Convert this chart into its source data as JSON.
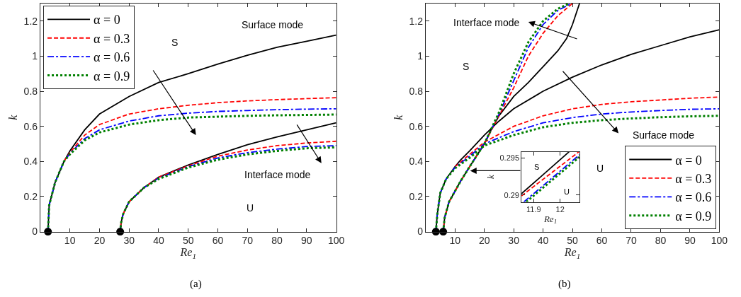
{
  "chart_data": [
    {
      "type": "line",
      "title": "(a)",
      "xlabel": "Re$_{1}$",
      "ylabel": "k",
      "xlim": [
        0,
        100
      ],
      "ylim": [
        0,
        1.3
      ],
      "xticks": [
        10,
        20,
        30,
        40,
        50,
        60,
        70,
        80,
        90,
        100
      ],
      "yticks": [
        0,
        0.2,
        0.4,
        0.6,
        0.8,
        1,
        1.2
      ],
      "legend": "top left",
      "series": [
        {
          "name": "α = 0",
          "color": "#000000",
          "line_style": "solid",
          "x": [
            2.6,
            3,
            5,
            8,
            10,
            15,
            20,
            30,
            40,
            50,
            60,
            70,
            80,
            90,
            100,
            null,
            27,
            27.3,
            28,
            30,
            35,
            40,
            50,
            60,
            70,
            80,
            90,
            100
          ],
          "values": [
            0,
            0.15,
            0.28,
            0.4,
            0.46,
            0.58,
            0.67,
            0.77,
            0.85,
            0.9,
            0.955,
            1.005,
            1.05,
            1.085,
            1.12,
            null,
            0,
            0.05,
            0.1,
            0.17,
            0.25,
            0.31,
            0.38,
            0.44,
            0.495,
            0.54,
            0.58,
            0.62
          ]
        },
        {
          "name": "α = 0.3",
          "color": "#ff0000",
          "line_style": "dashed",
          "x": [
            8,
            10,
            15,
            20,
            30,
            40,
            50,
            60,
            70,
            80,
            90,
            100,
            null,
            27,
            27.3,
            28,
            30,
            35,
            40,
            50,
            60,
            70,
            80,
            90,
            100
          ],
          "values": [
            0.4,
            0.45,
            0.55,
            0.61,
            0.67,
            0.7,
            0.72,
            0.735,
            0.745,
            0.752,
            0.758,
            0.763,
            null,
            0,
            0.05,
            0.1,
            0.17,
            0.25,
            0.31,
            0.375,
            0.43,
            0.465,
            0.49,
            0.505,
            0.515
          ]
        },
        {
          "name": "α = 0.6",
          "color": "#0000ff",
          "line_style": "dashdot",
          "x": [
            2.6,
            3,
            5,
            8,
            10,
            15,
            20,
            30,
            40,
            50,
            60,
            70,
            80,
            90,
            100,
            null,
            27,
            27.3,
            28,
            30,
            35,
            40,
            50,
            60,
            70,
            80,
            90,
            100
          ],
          "values": [
            0,
            0.15,
            0.28,
            0.4,
            0.445,
            0.53,
            0.58,
            0.63,
            0.66,
            0.675,
            0.685,
            0.69,
            0.695,
            0.698,
            0.7,
            null,
            0,
            0.05,
            0.1,
            0.17,
            0.25,
            0.305,
            0.37,
            0.42,
            0.45,
            0.47,
            0.485,
            0.49
          ]
        },
        {
          "name": "α = 0.9",
          "color": "#008000",
          "line_style": "dotted",
          "x": [
            2.6,
            3,
            5,
            8,
            10,
            15,
            20,
            30,
            40,
            50,
            60,
            70,
            80,
            90,
            100,
            null,
            27,
            27.3,
            28,
            30,
            35,
            40,
            50,
            60,
            70,
            80,
            90,
            100
          ],
          "values": [
            0,
            0.15,
            0.28,
            0.4,
            0.44,
            0.52,
            0.565,
            0.61,
            0.635,
            0.65,
            0.655,
            0.66,
            0.663,
            0.665,
            0.667,
            null,
            0,
            0.05,
            0.1,
            0.17,
            0.25,
            0.3,
            0.365,
            0.41,
            0.44,
            0.46,
            0.475,
            0.48
          ]
        },
        {
          "type": "scatter",
          "color": "#000000",
          "marker": "circle",
          "x": [
            2.6,
            27
          ],
          "values": [
            0,
            0
          ]
        }
      ],
      "annotations": [
        "S",
        "Surface mode",
        "Interface mode",
        "U"
      ]
    },
    {
      "type": "line",
      "title": "(b)",
      "xlabel": "Re$_{1}$",
      "ylabel": "k",
      "xlim": [
        0,
        100
      ],
      "ylim": [
        0,
        1.3
      ],
      "xticks": [
        10,
        20,
        30,
        40,
        50,
        60,
        70,
        80,
        90,
        100
      ],
      "yticks": [
        0,
        0.2,
        0.4,
        0.6,
        0.8,
        1,
        1.2
      ],
      "legend": "bottom right",
      "series": [
        {
          "name": "α = 0",
          "color": "#000000",
          "line_style": "solid",
          "x": [
            3.5,
            4,
            5,
            7,
            10,
            12,
            15,
            20,
            25,
            30,
            40,
            50,
            60,
            70,
            80,
            90,
            100,
            null,
            6,
            6.5,
            8,
            10,
            12,
            15,
            20,
            22,
            25,
            30,
            35,
            40,
            45,
            48,
            50,
            52.4
          ],
          "values": [
            0,
            0.1,
            0.22,
            0.3,
            0.37,
            0.41,
            0.46,
            0.55,
            0.63,
            0.7,
            0.8,
            0.88,
            0.95,
            1.01,
            1.06,
            1.11,
            1.15,
            null,
            0,
            0.08,
            0.17,
            0.23,
            0.29,
            0.37,
            0.5,
            0.57,
            0.66,
            0.77,
            0.85,
            0.94,
            1.03,
            1.1,
            1.18,
            1.3
          ]
        },
        {
          "name": "α = 0.3",
          "color": "#ff0000",
          "line_style": "dashed",
          "x": [
            10,
            15,
            20,
            30,
            40,
            50,
            60,
            70,
            80,
            90,
            100,
            null,
            6,
            6.5,
            8,
            10,
            12,
            15,
            20,
            25,
            30,
            35,
            40,
            45,
            50
          ],
          "values": [
            0.37,
            0.44,
            0.51,
            0.6,
            0.66,
            0.7,
            0.725,
            0.74,
            0.75,
            0.76,
            0.767,
            null,
            0,
            0.08,
            0.17,
            0.23,
            0.29,
            0.37,
            0.5,
            0.66,
            0.82,
            1,
            1.13,
            1.23,
            1.3
          ]
        },
        {
          "name": "α = 0.6",
          "color": "#0000ff",
          "line_style": "dashdot",
          "x": [
            3.5,
            4,
            5,
            7,
            10,
            15,
            20,
            30,
            40,
            50,
            60,
            70,
            80,
            90,
            100,
            null,
            6,
            6.5,
            8,
            10,
            12,
            15,
            20,
            25,
            30,
            35,
            40,
            45,
            49.6
          ],
          "values": [
            0,
            0.1,
            0.22,
            0.3,
            0.365,
            0.43,
            0.5,
            0.57,
            0.62,
            0.65,
            0.67,
            0.682,
            0.69,
            0.697,
            0.7,
            null,
            0,
            0.08,
            0.17,
            0.23,
            0.29,
            0.37,
            0.5,
            0.67,
            0.86,
            1.05,
            1.18,
            1.26,
            1.3
          ]
        },
        {
          "name": "α = 0.9",
          "color": "#008000",
          "line_style": "dotted",
          "x": [
            3.5,
            4,
            5,
            7,
            10,
            15,
            20,
            30,
            40,
            50,
            60,
            70,
            80,
            90,
            100,
            null,
            6,
            6.5,
            8,
            10,
            12,
            15,
            20,
            25,
            30,
            35,
            40,
            45,
            48.9
          ],
          "values": [
            0,
            0.1,
            0.22,
            0.3,
            0.36,
            0.42,
            0.49,
            0.55,
            0.595,
            0.62,
            0.635,
            0.645,
            0.652,
            0.657,
            0.66,
            null,
            0,
            0.08,
            0.17,
            0.23,
            0.29,
            0.37,
            0.5,
            0.68,
            0.9,
            1.08,
            1.2,
            1.27,
            1.3
          ]
        },
        {
          "type": "scatter",
          "color": "#000000",
          "marker": "circle",
          "x": [
            3.5,
            6
          ],
          "values": [
            0,
            0
          ]
        }
      ],
      "annotations": [
        "Interface mode",
        "S",
        "Surface mode",
        "U"
      ]
    },
    {
      "type": "line",
      "xlabel": "Re$_{1}$",
      "ylabel": "k",
      "xlim": [
        11.854,
        12.073
      ],
      "ylim": [
        0.2891,
        0.2958
      ],
      "xticks": [
        11.9,
        12
      ],
      "yticks": [
        0.29,
        0.295
      ],
      "series": [
        {
          "color": "#000000",
          "line_style": "solid",
          "x": [
            11.854,
            12.034
          ],
          "values": [
            0.2902,
            0.2958
          ]
        },
        {
          "color": "#ff0000",
          "line_style": "dashed",
          "x": [
            11.854,
            12.071
          ],
          "values": [
            0.2899,
            0.2958
          ]
        },
        {
          "color": "#0000ff",
          "line_style": "dashdot",
          "x": [
            11.863,
            12.073
          ],
          "values": [
            0.2891,
            0.2954
          ]
        },
        {
          "color": "#008000",
          "line_style": "dotted",
          "x": [
            11.872,
            12.073
          ],
          "values": [
            0.2891,
            0.2951
          ]
        }
      ],
      "annotations": [
        "S",
        "U"
      ]
    }
  ]
}
